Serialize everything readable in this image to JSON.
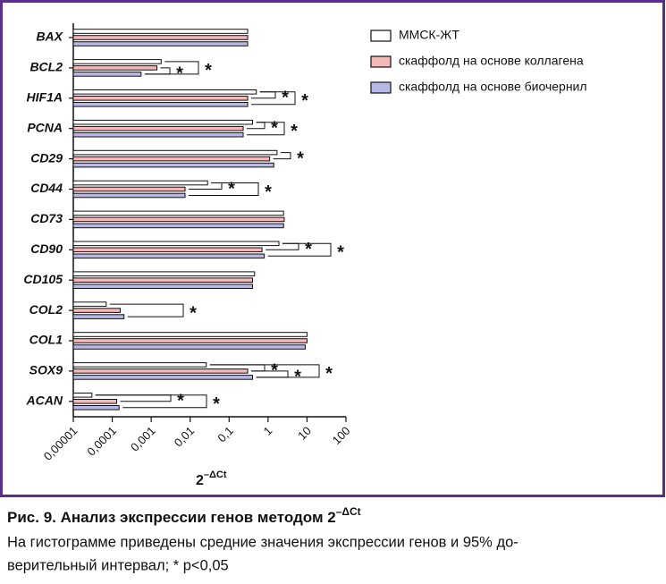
{
  "chart_data": {
    "type": "bar",
    "orientation": "horizontal",
    "categories": [
      "BAX",
      "BCL2",
      "HIF1A",
      "PCNA",
      "CD29",
      "CD44",
      "CD73",
      "CD90",
      "CD105",
      "COL2",
      "COL1",
      "SOX9",
      "ACAN"
    ],
    "series": [
      {
        "name": "ММСК-ЖТ",
        "color": "#ffffff",
        "values": [
          0.3,
          0.0018,
          0.5,
          0.4,
          1.7,
          0.028,
          2.5,
          1.9,
          0.45,
          7e-05,
          10,
          0.026,
          3e-05
        ]
      },
      {
        "name": "скаффолд на основе коллагена",
        "color": "#f4b8b8",
        "values": [
          0.3,
          0.0014,
          0.3,
          0.23,
          1.1,
          0.0074,
          2.6,
          0.7,
          0.4,
          0.00016,
          10,
          0.3,
          0.00013
        ]
      },
      {
        "name": "скаффолд на основе биочернил",
        "color": "#b8b8e8",
        "values": [
          0.3,
          0.00055,
          0.3,
          0.23,
          1.4,
          0.0074,
          2.5,
          0.8,
          0.4,
          0.0002,
          9,
          0.4,
          0.00015
        ]
      }
    ],
    "xscale": "log",
    "xlim": [
      1e-05,
      100
    ],
    "xticks": [
      {
        "value": 1e-05,
        "label": "0,00001"
      },
      {
        "value": 0.0001,
        "label": "0,0001"
      },
      {
        "value": 0.001,
        "label": "0,001"
      },
      {
        "value": 0.01,
        "label": "0,01"
      },
      {
        "value": 0.1,
        "label": "0,1"
      },
      1,
      10,
      100
    ],
    "x_label": {
      "base": "2",
      "sup": "–ΔCt"
    },
    "significance_marker": "*",
    "legend": "top-right"
  },
  "caption": {
    "title": "Рис. 9. Анализ экспрессии генов методом 2",
    "title_sup": "–ΔCt",
    "lines": [
      "На гистограмме приведены средние значения экспрессии генов и 95% до-",
      "верительный интервал; * p<0,05"
    ]
  }
}
